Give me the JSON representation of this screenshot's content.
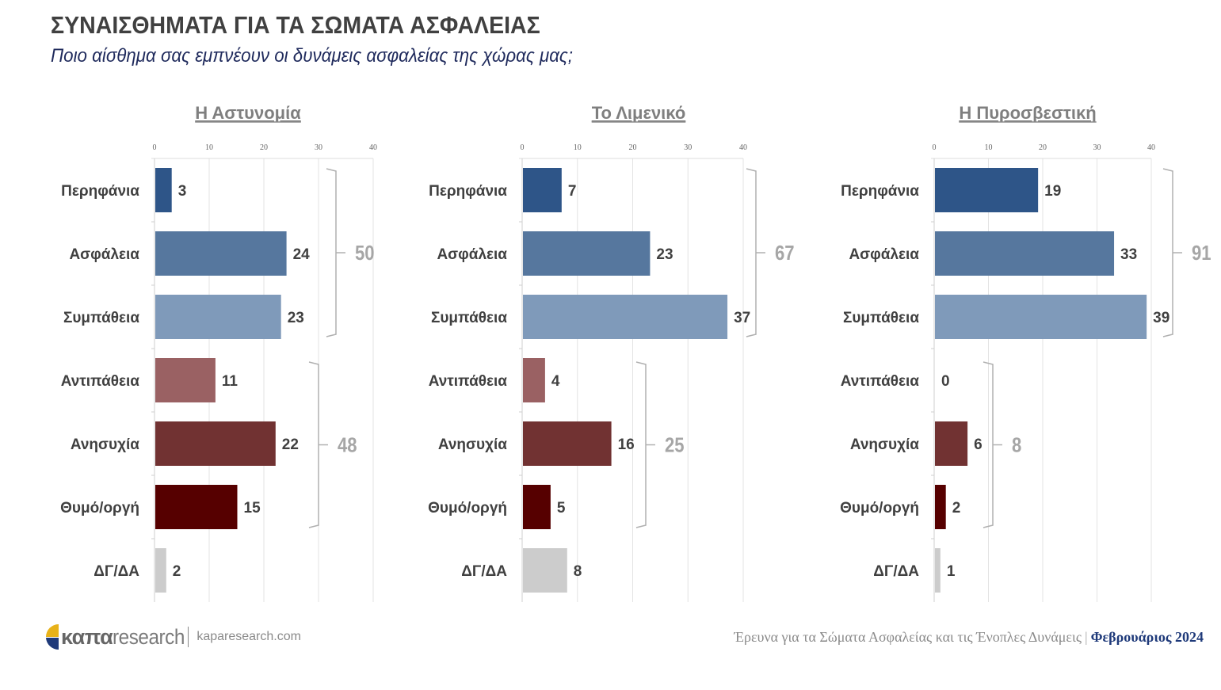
{
  "header": {
    "title": "ΣΥΝΑΙΣΘΗΜΑΤΑ ΓΙΑ ΤΑ ΣΩΜΑΤΑ ΑΣΦΑΛΕΙΑΣ",
    "subtitle": "Ποιο αίσθημα σας εμπνέουν οι δυνάμεις ασφαλείας της χώρας μας;"
  },
  "colors": {
    "Περηφάνια": "#2e5588",
    "Ασφάλεια": "#56779e",
    "Συμπάθεια": "#7f9aba",
    "Αντιπάθεια": "#9a6163",
    "Ανησυχία": "#713232",
    "Θυμό/οργή": "#560000",
    "ΔΓ/ΔΑ": "#cccccc"
  },
  "chart_data": [
    {
      "type": "bar",
      "orientation": "horizontal",
      "title": "Η Αστυνομία",
      "categories": [
        "Περηφάνια",
        "Ασφάλεια",
        "Συμπάθεια",
        "Αντιπάθεια",
        "Ανησυχία",
        "Θυμό/οργή",
        "ΔΓ/ΔΑ"
      ],
      "values": [
        3,
        24,
        23,
        11,
        22,
        15,
        2
      ],
      "xlim": [
        0,
        40
      ],
      "xticks": [
        "0",
        "10",
        "20",
        "30",
        "40"
      ],
      "grid": true,
      "groups": [
        {
          "name": "positive",
          "total": "50"
        },
        {
          "name": "negative",
          "total": "48"
        }
      ]
    },
    {
      "type": "bar",
      "orientation": "horizontal",
      "title": "Το Λιμενικό",
      "categories": [
        "Περηφάνια",
        "Ασφάλεια",
        "Συμπάθεια",
        "Αντιπάθεια",
        "Ανησυχία",
        "Θυμό/οργή",
        "ΔΓ/ΔΑ"
      ],
      "values": [
        7,
        23,
        37,
        4,
        16,
        5,
        8
      ],
      "xlim": [
        0,
        40
      ],
      "xticks": [
        "0",
        "10",
        "20",
        "30",
        "40"
      ],
      "grid": true,
      "groups": [
        {
          "name": "positive",
          "total": "67"
        },
        {
          "name": "negative",
          "total": "25"
        }
      ]
    },
    {
      "type": "bar",
      "orientation": "horizontal",
      "title": "Η Πυροσβεστική",
      "categories": [
        "Περηφάνια",
        "Ασφάλεια",
        "Συμπάθεια",
        "Αντιπάθεια",
        "Ανησυχία",
        "Θυμό/οργή",
        "ΔΓ/ΔΑ"
      ],
      "values": [
        19,
        33,
        39,
        0,
        6,
        2,
        1
      ],
      "xlim": [
        0,
        40
      ],
      "xticks": [
        "0",
        "10",
        "20",
        "30",
        "40"
      ],
      "grid": true,
      "groups": [
        {
          "name": "positive",
          "total": "91"
        },
        {
          "name": "negative",
          "total": "8"
        }
      ]
    }
  ],
  "footer": {
    "logo_bold": "καπα",
    "logo_light": "research",
    "url": "kaparesearch.com",
    "survey": "Έρευνα για τα Σώματα Ασφαλείας και τις Ένοπλες Δυνάμεις",
    "separator": "|",
    "date": "Φεβρουάριος 2024"
  }
}
